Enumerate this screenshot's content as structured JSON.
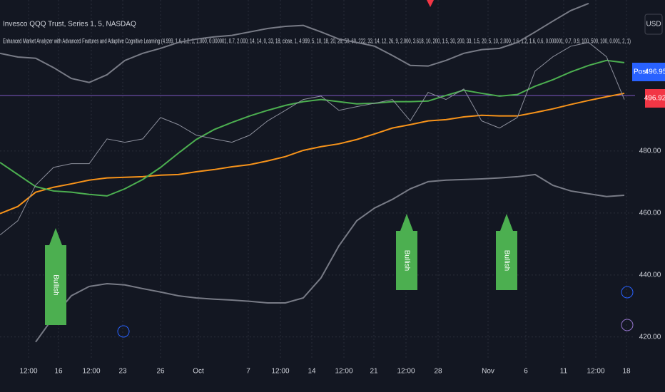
{
  "header": {
    "symbol": "Invesco QQQ Trust, Series 1, 5, NASDAQ",
    "indicator": "Enhanced Market Analyzer with Advanced Features and Adaptive Cognitive Learning (4.999, 1.6, 1.2, 1, 1.000, 0.000001, 0.7, 2.000, 14, 14, 0, 33, 18, close, 1, 4.999, 5, 10, 18, 20, 26, 50, 60, 222, 33, 14, 12, 26, 9, 2.000, 3.618, 10, 200, 1.5, 30, 200, 33, 1.5, 20, 5, 10, 2.000, 1.6, 1.2, 1.6, 0.6, 0.000001, 0.7, 0.9, 100, 500, 100, 0.001, 2, 1)",
    "currency": "USD"
  },
  "price_labels": {
    "post_tag": "Post",
    "post_price": "496.95",
    "last_price": "496.92"
  },
  "chart_data": {
    "type": "line",
    "x": [
      0,
      5,
      10,
      15,
      20,
      25,
      30,
      35,
      40,
      45,
      50,
      55,
      60,
      65,
      70,
      75,
      80,
      85,
      90,
      95,
      100,
      105,
      110,
      115,
      120,
      125,
      130,
      135,
      140,
      145,
      150,
      155,
      160,
      165,
      170,
      175
    ],
    "xlim": [
      0,
      178
    ],
    "xticks": [
      {
        "value": 8,
        "label": "12:00"
      },
      {
        "value": 16.4,
        "label": "16"
      },
      {
        "value": 25.6,
        "label": "12:00"
      },
      {
        "value": 34.4,
        "label": "23"
      },
      {
        "value": 45,
        "label": "26"
      },
      {
        "value": 55.6,
        "label": "Oct"
      },
      {
        "value": 69.6,
        "label": "7"
      },
      {
        "value": 78.6,
        "label": "12:00"
      },
      {
        "value": 87.4,
        "label": "14"
      },
      {
        "value": 96.4,
        "label": "12:00"
      },
      {
        "value": 104.8,
        "label": "21"
      },
      {
        "value": 113.8,
        "label": "12:00"
      },
      {
        "value": 122.8,
        "label": "28"
      },
      {
        "value": 136.8,
        "label": "Nov"
      },
      {
        "value": 147.4,
        "label": "6"
      },
      {
        "value": 158,
        "label": "11"
      },
      {
        "value": 167,
        "label": "12:00"
      },
      {
        "value": 175.6,
        "label": "18"
      }
    ],
    "ylim": [
      412.6,
      528.7
    ],
    "yticks": [
      {
        "value": 420,
        "label": "420.00"
      },
      {
        "value": 440,
        "label": "440.00"
      },
      {
        "value": 460,
        "label": "460.00"
      },
      {
        "value": 480,
        "label": "480.00"
      }
    ],
    "grid": true,
    "series": [
      {
        "color": "#787b86",
        "values": [
          511.5,
          510.3,
          509.9,
          506.9,
          503.4,
          502.1,
          504.6,
          509.2,
          511.5,
          513.1,
          515.0,
          516.1,
          516.8,
          517.3,
          518.4,
          519.5,
          520.2,
          520.5,
          518.4,
          516.1,
          515.0,
          513.8,
          510.8,
          507.6,
          507.4,
          509.2,
          511.5,
          512.7,
          513.1,
          515.0,
          518.4,
          521.9,
          525.3,
          527.6,
          null,
          null
        ]
      },
      {
        "color": "#787b86",
        "values": [
          null,
          null,
          418.4,
          426.4,
          433.3,
          436.3,
          437.2,
          436.8,
          435.6,
          434.5,
          433.3,
          432.6,
          432.2,
          431.9,
          431.5,
          431.0,
          431.0,
          432.6,
          439.1,
          449.4,
          457.5,
          461.6,
          464.4,
          467.8,
          470.1,
          470.6,
          470.8,
          471.0,
          471.3,
          471.7,
          472.4,
          468.9,
          467.1,
          466.2,
          465.3,
          465.7
        ]
      },
      {
        "color": "#f7931a",
        "values": [
          459.8,
          462.1,
          466.7,
          468.3,
          469.4,
          470.6,
          471.3,
          471.5,
          471.7,
          472.2,
          472.4,
          473.3,
          474.0,
          474.9,
          475.6,
          476.8,
          478.2,
          480.2,
          481.4,
          482.3,
          483.7,
          485.5,
          487.4,
          488.5,
          489.7,
          490.1,
          491.0,
          491.5,
          491.3,
          491.3,
          492.4,
          493.6,
          495.0,
          496.3,
          497.5,
          498.6
        ]
      },
      {
        "color": "#4caf50",
        "values": [
          476.3,
          472.4,
          468.5,
          467.1,
          466.7,
          466.0,
          465.5,
          467.8,
          470.8,
          474.7,
          479.3,
          483.7,
          486.9,
          489.2,
          491.3,
          493.1,
          494.7,
          495.9,
          496.6,
          495.9,
          495.2,
          495.4,
          495.9,
          495.9,
          496.1,
          497.9,
          499.6,
          498.6,
          497.7,
          498.2,
          500.9,
          503.0,
          505.5,
          507.6,
          509.2,
          508.5
        ]
      },
      {
        "color": "#8c8f9c",
        "values": [
          452.9,
          457.5,
          469.0,
          474.7,
          475.9,
          475.9,
          483.9,
          482.8,
          483.9,
          490.8,
          488.5,
          485.1,
          483.9,
          482.8,
          485.1,
          489.7,
          493.1,
          496.6,
          497.7,
          493.1,
          494.3,
          495.4,
          496.6,
          489.7,
          498.9,
          496.6,
          500.0,
          489.7,
          487.4,
          490.8,
          505.8,
          510.4,
          513.8,
          515.0,
          510.4,
          496.6
        ]
      }
    ],
    "annotations": [
      "Bullish",
      "Bullish",
      "Bullish"
    ]
  }
}
